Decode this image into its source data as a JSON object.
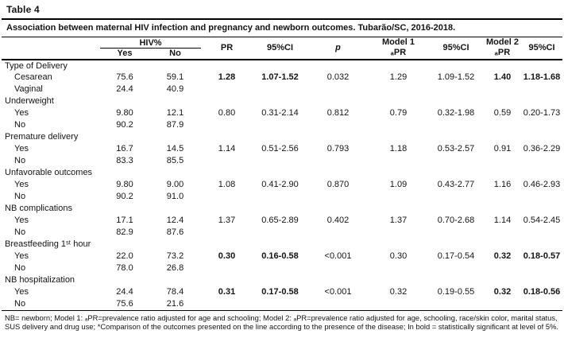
{
  "table": {
    "label": "Table 4",
    "caption": "Association between maternal HIV infection and pregnancy and newborn outcomes. Tubarão/SC, 2016-2018.",
    "header": {
      "hiv_group": "HIV%",
      "yes": "Yes",
      "no": "No",
      "pr": "PR",
      "ci1": "95%CI",
      "p": "p",
      "model1_line1": "Model 1",
      "model1_line2": "ₐPR",
      "ci2": "95%CI",
      "model2_line1": "Model 2",
      "model2_line2": "ₐPR",
      "ci3": "95%CI"
    },
    "rows": [
      {
        "label": "Type of Delivery",
        "indent": false,
        "cells": [
          "",
          "",
          "",
          "",
          "",
          "",
          "",
          "",
          ""
        ],
        "bold": []
      },
      {
        "label": "Cesarean",
        "indent": true,
        "cells": [
          "75.6",
          "59.1",
          "1.28",
          "1.07-1.52",
          "0.032",
          "1.29",
          "1.09-1.52",
          "1.40",
          "1.18-1.68"
        ],
        "bold": [
          2,
          3,
          7,
          8
        ]
      },
      {
        "label": "Vaginal",
        "indent": true,
        "cells": [
          "24.4",
          "40.9",
          "",
          "",
          "",
          "",
          "",
          "",
          ""
        ],
        "bold": []
      },
      {
        "label": "Underweight",
        "indent": false,
        "cells": [
          "",
          "",
          "",
          "",
          "",
          "",
          "",
          "",
          ""
        ],
        "bold": []
      },
      {
        "label": "Yes",
        "indent": true,
        "cells": [
          "9.80",
          "12.1",
          "0.80",
          "0.31-2.14",
          "0.812",
          "0.79",
          "0.32-1.98",
          "0.59",
          "0.20-1.73"
        ],
        "bold": []
      },
      {
        "label": "No",
        "indent": true,
        "cells": [
          "90.2",
          "87.9",
          "",
          "",
          "",
          "",
          "",
          "",
          ""
        ],
        "bold": []
      },
      {
        "label": "Premature delivery",
        "indent": false,
        "cells": [
          "",
          "",
          "",
          "",
          "",
          "",
          "",
          "",
          ""
        ],
        "bold": []
      },
      {
        "label": "Yes",
        "indent": true,
        "cells": [
          "16.7",
          "14.5",
          "1.14",
          "0.51-2.56",
          "0.793",
          "1.18",
          "0.53-2.57",
          "0.91",
          "0.36-2.29"
        ],
        "bold": []
      },
      {
        "label": "No",
        "indent": true,
        "cells": [
          "83.3",
          "85.5",
          "",
          "",
          "",
          "",
          "",
          "",
          ""
        ],
        "bold": []
      },
      {
        "label": "Unfavorable outcomes",
        "indent": false,
        "cells": [
          "",
          "",
          "",
          "",
          "",
          "",
          "",
          "",
          ""
        ],
        "bold": []
      },
      {
        "label": "Yes",
        "indent": true,
        "cells": [
          "9.80",
          "9.00",
          "1.08",
          "0.41-2.90",
          "0.870",
          "1.09",
          "0.43-2.77",
          "1.16",
          "0.46-2.93"
        ],
        "bold": []
      },
      {
        "label": "No",
        "indent": true,
        "cells": [
          "90.2",
          "91.0",
          "",
          "",
          "",
          "",
          "",
          "",
          ""
        ],
        "bold": []
      },
      {
        "label": "NB complications",
        "indent": false,
        "cells": [
          "",
          "",
          "",
          "",
          "",
          "",
          "",
          "",
          ""
        ],
        "bold": []
      },
      {
        "label": "Yes",
        "indent": true,
        "cells": [
          "17.1",
          "12.4",
          "1.37",
          "0.65-2.89",
          "0.402",
          "1.37",
          "0.70-2.68",
          "1.14",
          "0.54-2.45"
        ],
        "bold": []
      },
      {
        "label": "No",
        "indent": true,
        "cells": [
          "82.9",
          "87.6",
          "",
          "",
          "",
          "",
          "",
          "",
          ""
        ],
        "bold": []
      },
      {
        "label": "Breastfeeding 1ˢᵗ hour",
        "indent": false,
        "cells": [
          "",
          "",
          "",
          "",
          "",
          "",
          "",
          "",
          ""
        ],
        "bold": []
      },
      {
        "label": "Yes",
        "indent": true,
        "cells": [
          "22.0",
          "73.2",
          "0.30",
          "0.16-0.58",
          "<0.001",
          "0.30",
          "0.17-0.54",
          "0.32",
          "0.18-0.57"
        ],
        "bold": [
          2,
          3,
          7,
          8
        ]
      },
      {
        "label": "No",
        "indent": true,
        "cells": [
          "78.0",
          "26.8",
          "",
          "",
          "",
          "",
          "",
          "",
          ""
        ],
        "bold": []
      },
      {
        "label": "NB hospitalization",
        "indent": false,
        "cells": [
          "",
          "",
          "",
          "",
          "",
          "",
          "",
          "",
          ""
        ],
        "bold": []
      },
      {
        "label": "Yes",
        "indent": true,
        "cells": [
          "24.4",
          "78.4",
          "0.31",
          "0.17-0.58",
          "<0.001",
          "0.32",
          "0.19-0.55",
          "0.32",
          "0.18-0.56"
        ],
        "bold": [
          2,
          3,
          7,
          8
        ]
      },
      {
        "label": "No",
        "indent": true,
        "cells": [
          "75.6",
          "21.6",
          "",
          "",
          "",
          "",
          "",
          "",
          ""
        ],
        "bold": []
      }
    ],
    "footnote": "NB= newborn; Model 1: ₐPR=prevalence ratio adjusted for age and schooling; Model 2: ₐPR=prevalence ratio adjusted for age, schooling, race/skin color, marital status, SUS delivery and drug use; *Comparison of the outcomes presented on the line according to the presence of the disease; In bold = statistically significant at level of 5%."
  }
}
